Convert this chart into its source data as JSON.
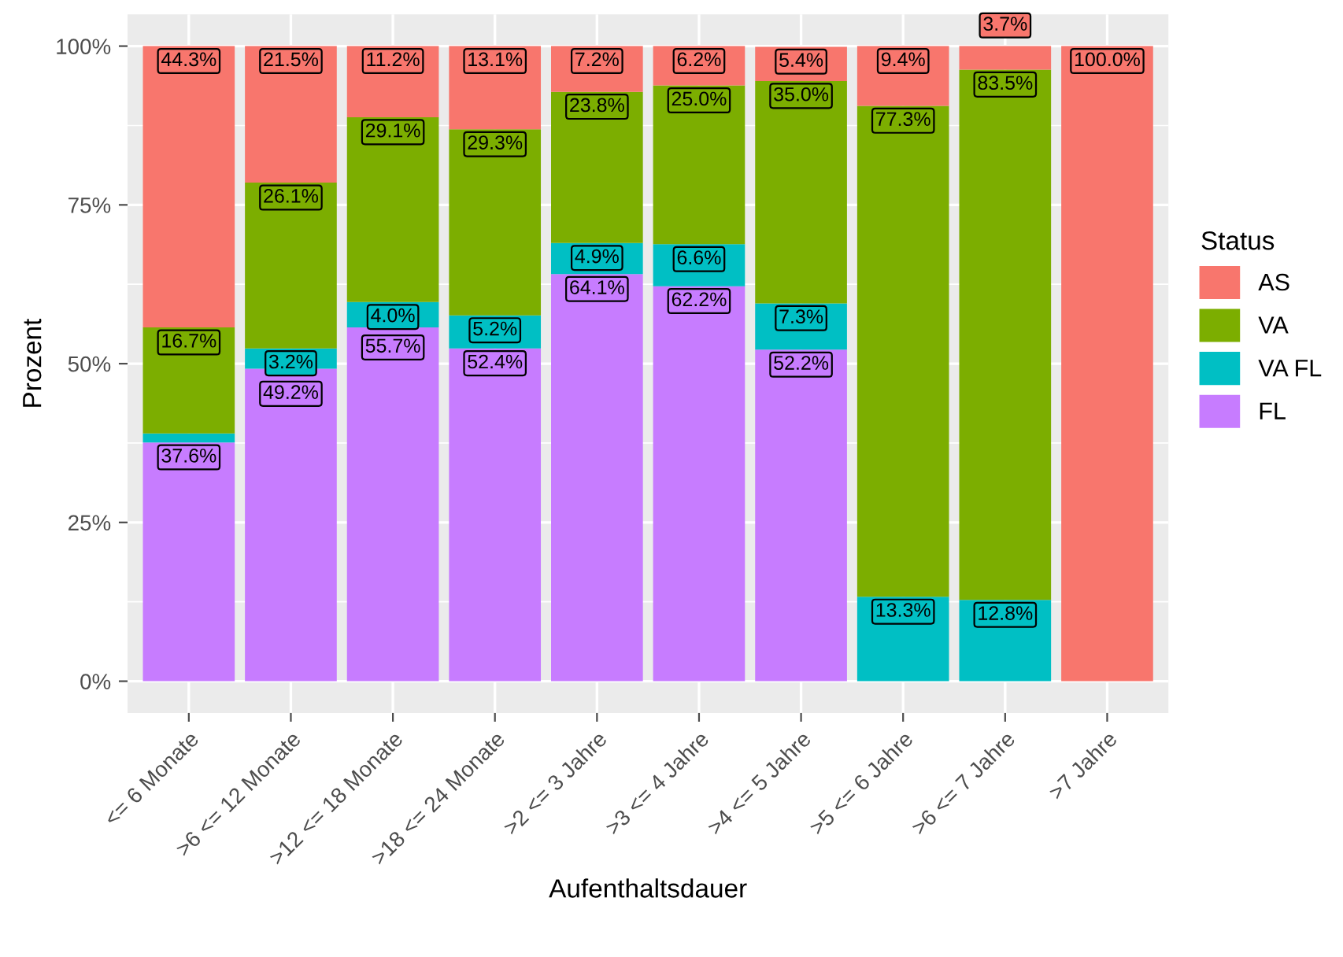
{
  "chart_data": {
    "type": "bar",
    "stacked": true,
    "xlabel": "Aufenthaltsdauer",
    "ylabel": "Prozent",
    "legend_title": "Status",
    "legend": "right",
    "grid": true,
    "categories": [
      "<= 6 Monate",
      ">6 <= 12 Monate",
      ">12 <= 18 Monate",
      ">18 <= 24 Monate",
      ">2 <= 3 Jahre",
      ">3 <= 4 Jahre",
      ">4 <= 5 Jahre",
      ">5 <= 6 Jahre",
      ">6 <= 7 Jahre",
      ">7 Jahre"
    ],
    "ylim": [
      -5,
      105
    ],
    "yticks": [
      {
        "value": 0,
        "label": "0%"
      },
      {
        "value": 25,
        "label": "25%"
      },
      {
        "value": 50,
        "label": "50%"
      },
      {
        "value": 75,
        "label": "75%"
      },
      {
        "value": 100,
        "label": "100%"
      }
    ],
    "series": [
      {
        "name": "FL",
        "color": "#c77cff",
        "values": [
          37.6,
          49.2,
          55.7,
          52.4,
          64.1,
          62.2,
          52.2,
          null,
          null,
          null
        ],
        "value_labels": [
          "37.6%",
          "49.2%",
          "55.7%",
          "52.4%",
          "64.1%",
          "62.2%",
          "52.2%",
          null,
          null,
          null
        ]
      },
      {
        "name": "VA FL",
        "color": "#00bfc4",
        "values": [
          1.4,
          3.2,
          4.0,
          5.2,
          4.9,
          6.6,
          7.3,
          13.3,
          12.8,
          null
        ],
        "value_labels": [
          null,
          "3.2%",
          "4.0%",
          "5.2%",
          "4.9%",
          "6.6%",
          "7.3%",
          "13.3%",
          "12.8%",
          null
        ]
      },
      {
        "name": "VA",
        "color": "#7cae00",
        "values": [
          16.7,
          26.1,
          29.1,
          29.3,
          23.8,
          25.0,
          35.0,
          77.3,
          83.5,
          null
        ],
        "value_labels": [
          "16.7%",
          "26.1%",
          "29.1%",
          "29.3%",
          "23.8%",
          "25.0%",
          "35.0%",
          "77.3%",
          "83.5%",
          null
        ]
      },
      {
        "name": "AS",
        "color": "#f8766d",
        "values": [
          44.3,
          21.5,
          11.2,
          13.1,
          7.2,
          6.2,
          5.4,
          9.4,
          3.7,
          100.0
        ],
        "value_labels": [
          "44.3%",
          "21.5%",
          "11.2%",
          "13.1%",
          "7.2%",
          "6.2%",
          "5.4%",
          "9.4%",
          "3.7%",
          "100.0%"
        ]
      }
    ]
  }
}
